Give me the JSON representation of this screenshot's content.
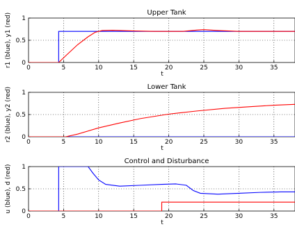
{
  "chart_data": [
    {
      "type": "line",
      "title": "Upper Tank",
      "xlabel": "t",
      "ylabel": "r1 (blue), y1 (red)",
      "xlim": [
        0,
        38
      ],
      "ylim": [
        0,
        1
      ],
      "grid": true,
      "x_ticks": [
        "0",
        "5",
        "10",
        "15",
        "20",
        "25",
        "30",
        "35"
      ],
      "y_ticks": [
        "0",
        "0.5",
        "1"
      ],
      "series": [
        {
          "color": "#0000ff",
          "x": [
            0,
            4.3,
            4.3,
            38
          ],
          "y": [
            0,
            0,
            0.7,
            0.7
          ]
        },
        {
          "color": "#ff0000",
          "x": [
            0,
            4.3,
            5.5,
            7,
            8.5,
            9.5,
            10.5,
            12,
            15,
            18,
            20,
            22,
            24,
            25,
            27,
            30,
            33,
            36,
            38
          ],
          "y": [
            0,
            0,
            0.18,
            0.4,
            0.58,
            0.68,
            0.72,
            0.725,
            0.71,
            0.7,
            0.7,
            0.7,
            0.73,
            0.74,
            0.72,
            0.7,
            0.7,
            0.7,
            0.7
          ]
        }
      ]
    },
    {
      "type": "line",
      "title": "Lower Tank",
      "xlabel": "t",
      "ylabel": "r2 (blue), y2 (red)",
      "xlim": [
        0,
        38
      ],
      "ylim": [
        0,
        1
      ],
      "grid": true,
      "x_ticks": [
        "0",
        "5",
        "10",
        "15",
        "20",
        "25",
        "30",
        "35"
      ],
      "y_ticks": [
        "0",
        "0.5",
        "1"
      ],
      "series": [
        {
          "color": "#0000ff",
          "x": [
            0,
            38
          ],
          "y": [
            0,
            0
          ]
        },
        {
          "color": "#ff0000",
          "x": [
            0,
            5.3,
            7,
            10,
            13,
            16,
            20,
            24,
            28,
            32,
            35,
            38
          ],
          "y": [
            0,
            0,
            0.06,
            0.2,
            0.31,
            0.41,
            0.51,
            0.58,
            0.64,
            0.68,
            0.71,
            0.73
          ]
        }
      ]
    },
    {
      "type": "line",
      "title": "Control and Disturbance",
      "xlabel": "t",
      "ylabel": "u (blue), d (red)",
      "xlim": [
        0,
        38
      ],
      "ylim": [
        0,
        1
      ],
      "grid": true,
      "x_ticks": [
        "0",
        "5",
        "10",
        "15",
        "20",
        "25",
        "30",
        "35"
      ],
      "y_ticks": [
        "0",
        "0.5",
        "1"
      ],
      "series": [
        {
          "color": "#0000ff",
          "x": [
            0,
            4.3,
            4.3,
            8.5,
            9.2,
            10,
            11,
            13,
            16,
            19,
            21,
            22.5,
            23.5,
            24.5,
            27,
            30,
            33,
            36,
            38
          ],
          "y": [
            0,
            0,
            1,
            1,
            0.85,
            0.7,
            0.6,
            0.56,
            0.58,
            0.6,
            0.61,
            0.58,
            0.46,
            0.4,
            0.38,
            0.4,
            0.42,
            0.43,
            0.43
          ]
        },
        {
          "color": "#ff0000",
          "x": [
            0,
            19,
            19,
            38
          ],
          "y": [
            0,
            0,
            0.2,
            0.2
          ]
        }
      ]
    }
  ]
}
